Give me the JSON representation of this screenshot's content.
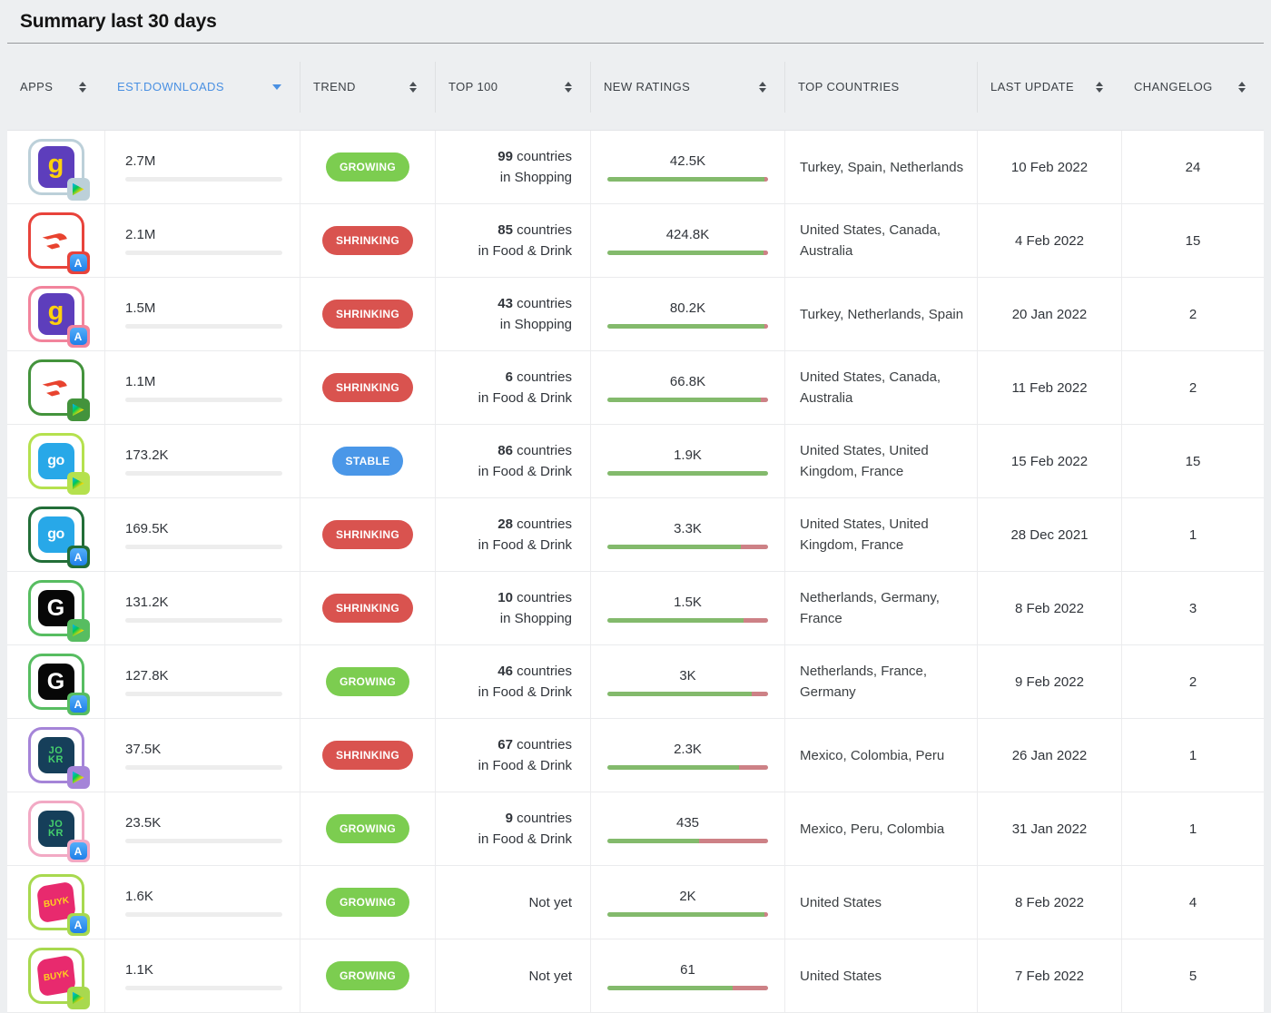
{
  "page": {
    "title": "Summary last 30 days"
  },
  "colors": {
    "accent_blue": "#4a90e2",
    "growing": "#7ccd50",
    "shrinking": "#d9534f",
    "stable": "#4a97e8",
    "downloads_green": "#7ed04e",
    "downloads_red": "#da5551",
    "downloads_blue": "#4a99e9",
    "ratings_green": "#83ba6c",
    "ratings_red": "#cd8186"
  },
  "table": {
    "columns": [
      {
        "label": "APPS",
        "sort_icon": "updown",
        "active": false
      },
      {
        "label": "EST.DOWNLOADS",
        "sort_icon": "down",
        "active": true
      },
      {
        "label": "TREND",
        "sort_icon": "updown",
        "active": false
      },
      {
        "label": "TOP 100",
        "sort_icon": "updown",
        "active": false
      },
      {
        "label": "NEW RATINGS",
        "sort_icon": "updown",
        "active": false
      },
      {
        "label": "TOP COUNTRIES",
        "sort_icon": "none",
        "active": false
      },
      {
        "label": "LAST UPDATE",
        "sort_icon": "updown",
        "active": false
      },
      {
        "label": "CHANGELOG",
        "sort_icon": "updown",
        "active": false
      }
    ],
    "rows": [
      {
        "app": {
          "id": "getir-play",
          "brand": "getir",
          "store": "play",
          "border": "#bcd0d9",
          "logo": {
            "kind": "text",
            "text": "g",
            "bg": "#5d3ebc",
            "color": "#ffd10d"
          }
        },
        "downloads": {
          "value": "2.7M",
          "bar_pct": 100,
          "bar_color": "#7ed04e"
        },
        "trend": {
          "label": "GROWING",
          "color": "#7ccd50"
        },
        "top100": {
          "count": "99",
          "unit": "countries",
          "category": "in Shopping"
        },
        "ratings": {
          "value": "42.5K",
          "green_pct": 97.5,
          "red_pct": 2.5
        },
        "top_countries": "Turkey, Spain, Netherlands",
        "last_update": "10 Feb 2022",
        "changelog": "24"
      },
      {
        "app": {
          "id": "doordash-appstore",
          "brand": "doordash",
          "store": "appstore",
          "border": "#e8433b",
          "logo": {
            "kind": "wing",
            "bg": "#ffffff",
            "color": "#e8432f"
          }
        },
        "downloads": {
          "value": "2.1M",
          "bar_pct": 77,
          "bar_color": "#da5551"
        },
        "trend": {
          "label": "SHRINKING",
          "color": "#d9534f"
        },
        "top100": {
          "count": "85",
          "unit": "countries",
          "category": "in Food & Drink"
        },
        "ratings": {
          "value": "424.8K",
          "green_pct": 97,
          "red_pct": 3
        },
        "top_countries": "United States, Canada, Australia",
        "last_update": "4 Feb 2022",
        "changelog": "15"
      },
      {
        "app": {
          "id": "getir-appstore",
          "brand": "getir",
          "store": "appstore",
          "border": "#f2849c",
          "logo": {
            "kind": "text",
            "text": "g",
            "bg": "#5d3ebc",
            "color": "#ffd10d"
          }
        },
        "downloads": {
          "value": "1.5M",
          "bar_pct": 55,
          "bar_color": "#da5551"
        },
        "trend": {
          "label": "SHRINKING",
          "color": "#d9534f"
        },
        "top100": {
          "count": "43",
          "unit": "countries",
          "category": "in Shopping"
        },
        "ratings": {
          "value": "80.2K",
          "green_pct": 98,
          "red_pct": 2
        },
        "top_countries": "Turkey, Netherlands, Spain",
        "last_update": "20 Jan 2022",
        "changelog": "2"
      },
      {
        "app": {
          "id": "doordash-play",
          "brand": "doordash",
          "store": "play",
          "border": "#43933c",
          "logo": {
            "kind": "wing",
            "bg": "#ffffff",
            "color": "#e8432f"
          }
        },
        "downloads": {
          "value": "1.1M",
          "bar_pct": 41,
          "bar_color": "#da5551"
        },
        "trend": {
          "label": "SHRINKING",
          "color": "#d9534f"
        },
        "top100": {
          "count": "6",
          "unit": "countries",
          "category": "in Food & Drink"
        },
        "ratings": {
          "value": "66.8K",
          "green_pct": 95.5,
          "red_pct": 4.5
        },
        "top_countries": "United States, Canada, Australia",
        "last_update": "11 Feb 2022",
        "changelog": "2"
      },
      {
        "app": {
          "id": "gopuff-play",
          "brand": "gopuff",
          "store": "play",
          "border": "#b5e14e",
          "logo": {
            "kind": "text",
            "text": "go",
            "bg": "#28a8e8",
            "color": "#ffffff"
          }
        },
        "downloads": {
          "value": "173.2K",
          "bar_pct": 6.5,
          "bar_color": "#4a99e9"
        },
        "trend": {
          "label": "STABLE",
          "color": "#4a97e8"
        },
        "top100": {
          "count": "86",
          "unit": "countries",
          "category": "in Food & Drink"
        },
        "ratings": {
          "value": "1.9K",
          "green_pct": 100,
          "red_pct": 0
        },
        "top_countries": "United States, United Kingdom, France",
        "last_update": "15 Feb 2022",
        "changelog": "15"
      },
      {
        "app": {
          "id": "gopuff-appstore",
          "brand": "gopuff",
          "store": "appstore",
          "border": "#226e38",
          "logo": {
            "kind": "text",
            "text": "go",
            "bg": "#28a8e8",
            "color": "#ffffff"
          }
        },
        "downloads": {
          "value": "169.5K",
          "bar_pct": 6,
          "bar_color": "#da5551"
        },
        "trend": {
          "label": "SHRINKING",
          "color": "#d9534f"
        },
        "top100": {
          "count": "28",
          "unit": "countries",
          "category": "in Food & Drink"
        },
        "ratings": {
          "value": "3.3K",
          "green_pct": 83,
          "red_pct": 17
        },
        "top_countries": "United States, United Kingdom, France",
        "last_update": "28 Dec 2021",
        "changelog": "1"
      },
      {
        "app": {
          "id": "gorillas-play",
          "brand": "gorillas",
          "store": "play",
          "border": "#57bd61",
          "logo": {
            "kind": "text",
            "text": "G",
            "bg": "#070707",
            "color": "#ffffff"
          }
        },
        "downloads": {
          "value": "131.2K",
          "bar_pct": 5,
          "bar_color": "#da5551"
        },
        "trend": {
          "label": "SHRINKING",
          "color": "#d9534f"
        },
        "top100": {
          "count": "10",
          "unit": "countries",
          "category": "in Shopping"
        },
        "ratings": {
          "value": "1.5K",
          "green_pct": 85,
          "red_pct": 15
        },
        "top_countries": "Netherlands, Germany, France",
        "last_update": "8 Feb 2022",
        "changelog": "3"
      },
      {
        "app": {
          "id": "gorillas-appstore",
          "brand": "gorillas",
          "store": "appstore",
          "border": "#57bd61",
          "logo": {
            "kind": "text",
            "text": "G",
            "bg": "#070707",
            "color": "#ffffff"
          }
        },
        "downloads": {
          "value": "127.8K",
          "bar_pct": 4.5,
          "bar_color": "#7ed04e"
        },
        "trend": {
          "label": "GROWING",
          "color": "#7ccd50"
        },
        "top100": {
          "count": "46",
          "unit": "countries",
          "category": "in Food & Drink"
        },
        "ratings": {
          "value": "3K",
          "green_pct": 90,
          "red_pct": 10
        },
        "top_countries": "Netherlands, France, Germany",
        "last_update": "9 Feb 2022",
        "changelog": "2"
      },
      {
        "app": {
          "id": "jokr-play",
          "brand": "jokr",
          "store": "play",
          "border": "#a584d8",
          "logo": {
            "kind": "text",
            "text": "JO KR",
            "bg": "#163f5a",
            "color": "#45d06c"
          }
        },
        "downloads": {
          "value": "37.5K",
          "bar_pct": 1.5,
          "bar_color": "#da5551"
        },
        "trend": {
          "label": "SHRINKING",
          "color": "#d9534f"
        },
        "top100": {
          "count": "67",
          "unit": "countries",
          "category": "in Food & Drink"
        },
        "ratings": {
          "value": "2.3K",
          "green_pct": 82,
          "red_pct": 18
        },
        "top_countries": "Mexico, Colombia, Peru",
        "last_update": "26 Jan 2022",
        "changelog": "1"
      },
      {
        "app": {
          "id": "jokr-appstore",
          "brand": "jokr",
          "store": "appstore",
          "border": "#f2a9c4",
          "logo": {
            "kind": "text",
            "text": "JO KR",
            "bg": "#163f5a",
            "color": "#45d06c"
          }
        },
        "downloads": {
          "value": "23.5K",
          "bar_pct": 1.2,
          "bar_color": "#7ed04e"
        },
        "trend": {
          "label": "GROWING",
          "color": "#7ccd50"
        },
        "top100": {
          "count": "9",
          "unit": "countries",
          "category": "in Food & Drink"
        },
        "ratings": {
          "value": "435",
          "green_pct": 57,
          "red_pct": 43
        },
        "top_countries": "Mexico, Peru, Colombia",
        "last_update": "31 Jan 2022",
        "changelog": "1"
      },
      {
        "app": {
          "id": "buyk-appstore",
          "brand": "buyk",
          "store": "appstore",
          "border": "#a8d94f",
          "logo": {
            "kind": "text",
            "text": "BUYK",
            "bg": "#e82a6e",
            "color": "#ffd21e"
          }
        },
        "downloads": {
          "value": "1.6K",
          "bar_pct": 0,
          "bar_color": "#7ed04e"
        },
        "trend": {
          "label": "GROWING",
          "color": "#7ccd50"
        },
        "top100": {
          "not_yet": "Not yet"
        },
        "ratings": {
          "value": "2K",
          "green_pct": 98,
          "red_pct": 2
        },
        "top_countries": "United States",
        "last_update": "8 Feb 2022",
        "changelog": "4"
      },
      {
        "app": {
          "id": "buyk-play",
          "brand": "buyk",
          "store": "play",
          "border": "#a8d94f",
          "logo": {
            "kind": "text",
            "text": "BUYK",
            "bg": "#e82a6e",
            "color": "#ffd21e"
          }
        },
        "downloads": {
          "value": "1.1K",
          "bar_pct": 0,
          "bar_color": "#7ed04e"
        },
        "trend": {
          "label": "GROWING",
          "color": "#7ccd50"
        },
        "top100": {
          "not_yet": "Not yet"
        },
        "ratings": {
          "value": "61",
          "green_pct": 78,
          "red_pct": 22
        },
        "top_countries": "United States",
        "last_update": "7 Feb 2022",
        "changelog": "5"
      }
    ]
  }
}
